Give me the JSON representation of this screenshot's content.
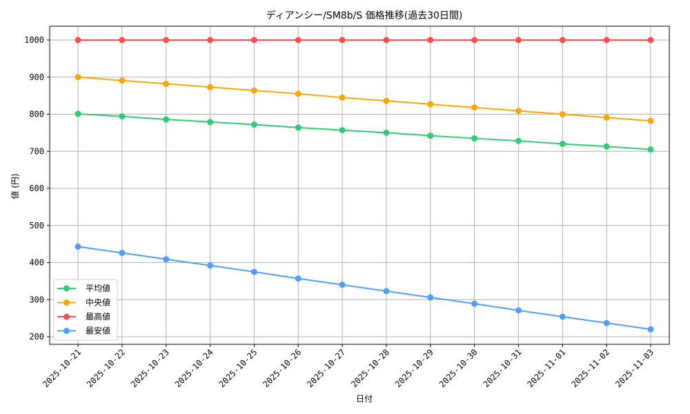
{
  "chart_data": {
    "type": "line",
    "title": "ディアンシー/SM8b/S 価格推移(過去30日間)",
    "xlabel": "日付",
    "ylabel": "値 (円)",
    "ylim": [
      180,
      1040
    ],
    "yticks": [
      200,
      300,
      400,
      500,
      600,
      700,
      800,
      900,
      1000
    ],
    "grid": true,
    "legend_position": "lower left",
    "categories": [
      "2025-10-21",
      "2025-10-22",
      "2025-10-23",
      "2025-10-24",
      "2025-10-25",
      "2025-10-26",
      "2025-10-27",
      "2025-10-28",
      "2025-10-29",
      "2025-10-30",
      "2025-10-31",
      "2025-11-01",
      "2025-11-02",
      "2025-11-03"
    ],
    "series": [
      {
        "name": "平均値",
        "color": "#2ecc71",
        "values": [
          801,
          794,
          786,
          779,
          772,
          764,
          757,
          750,
          742,
          735,
          728,
          720,
          713,
          705
        ]
      },
      {
        "name": "中央値",
        "color": "#ffa500",
        "values": [
          900,
          891,
          882,
          873,
          864,
          855,
          845,
          836,
          827,
          818,
          809,
          800,
          791,
          782
        ]
      },
      {
        "name": "最高値",
        "color": "#ff4d4d",
        "values": [
          1000,
          1000,
          1000,
          1000,
          1000,
          1000,
          1000,
          1000,
          1000,
          1000,
          1000,
          1000,
          1000,
          1000
        ]
      },
      {
        "name": "最安値",
        "color": "#4d9fff",
        "values": [
          443,
          426,
          409,
          392,
          375,
          357,
          340,
          323,
          306,
          289,
          271,
          254,
          237,
          220
        ]
      }
    ]
  }
}
